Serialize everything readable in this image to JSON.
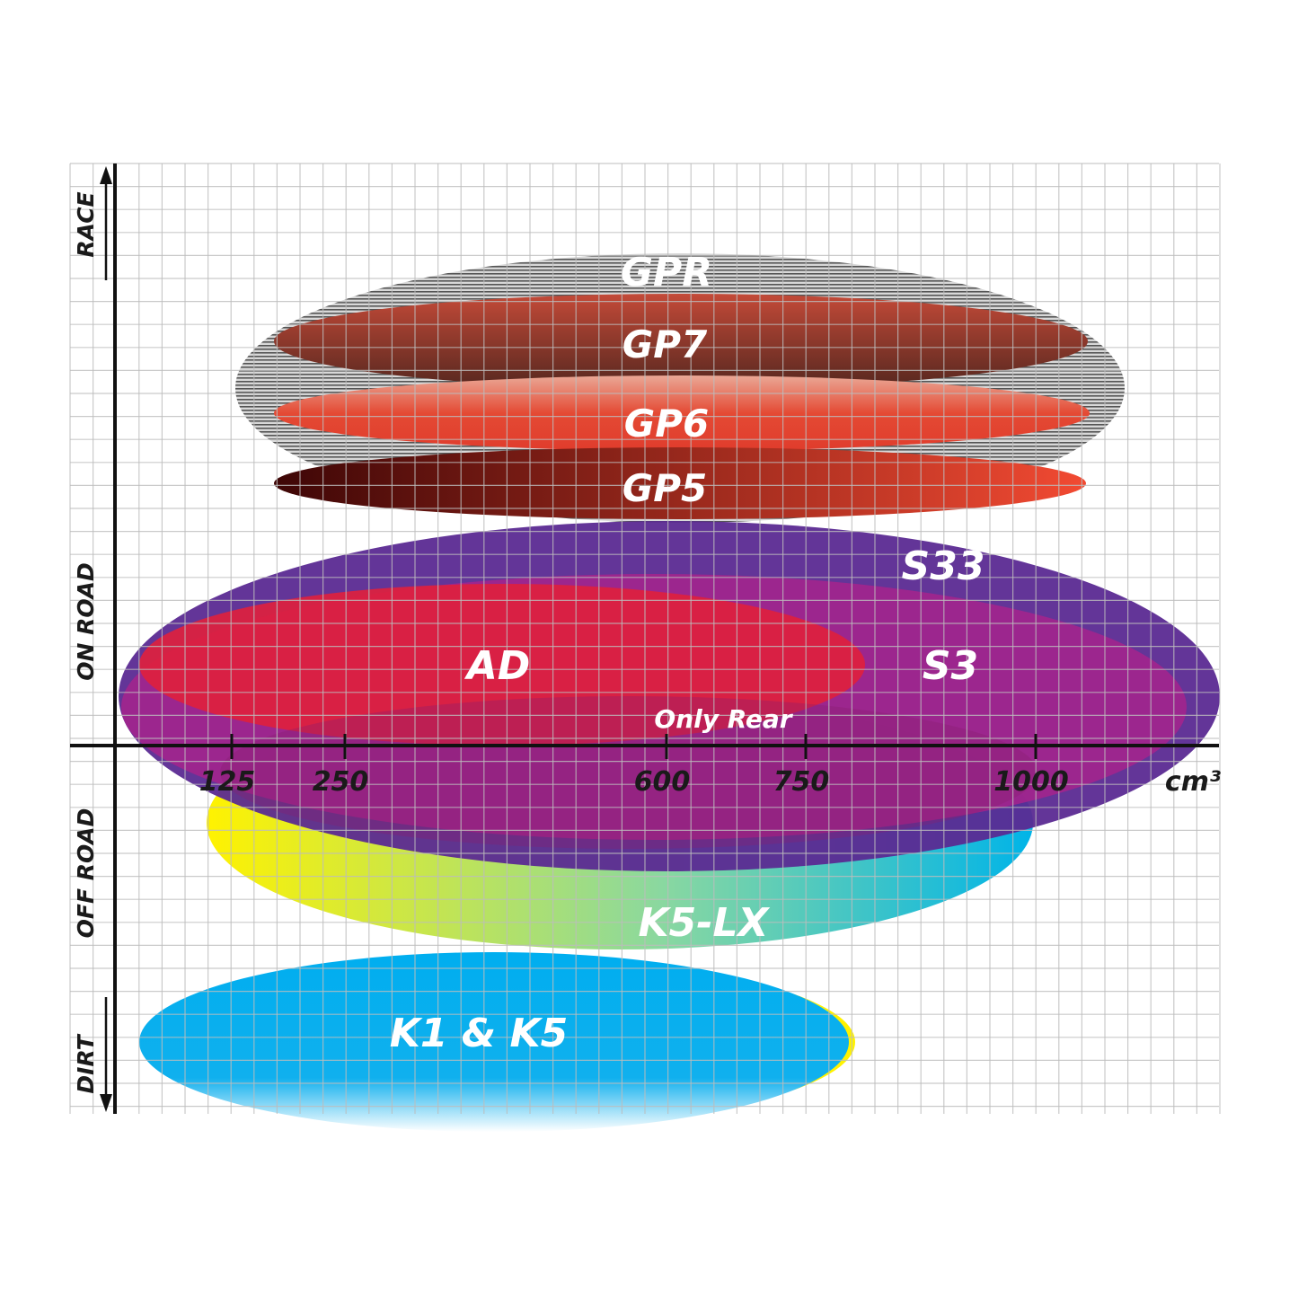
{
  "chart_data": {
    "type": "diagram-ellipses",
    "xlabel": "cm³",
    "x_ticks": [
      "125",
      "250",
      "600",
      "750",
      "1000"
    ],
    "y_categories": [
      "RACE",
      "ON ROAD",
      "OFF ROAD",
      "DIRT"
    ],
    "grid": true,
    "ranges": [
      {
        "name": "GPR",
        "color": "#9a9a9a"
      },
      {
        "name": "GP7",
        "color": "#a8402f"
      },
      {
        "name": "GP6",
        "color": "#e2432f"
      },
      {
        "name": "GP5",
        "color": "#7a1510"
      },
      {
        "name": "S33",
        "color": "#5b2a92"
      },
      {
        "name": "S3",
        "color": "#a6238c"
      },
      {
        "name": "AD",
        "color": "#e0203c"
      },
      {
        "name": "Only Rear",
        "color": "#8a2070"
      },
      {
        "name": "K5-LX",
        "color": "#2ab8c8"
      },
      {
        "name": "K1 & K5",
        "color": "#00aeef"
      }
    ]
  }
}
